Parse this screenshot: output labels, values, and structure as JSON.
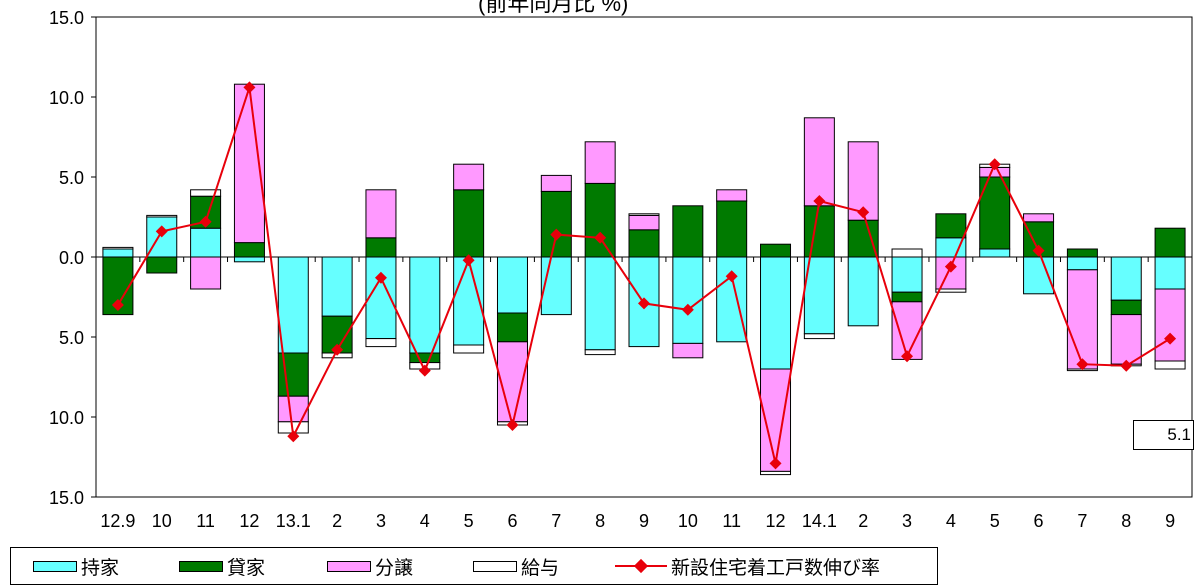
{
  "chart_data": {
    "type": "bar",
    "stacked": true,
    "title": "(前年同月比 %)",
    "xlabel": "",
    "ylabel": "",
    "ylim": [
      -15,
      15
    ],
    "yticks": [
      -15,
      -10,
      -5,
      0,
      5,
      10,
      15
    ],
    "ytick_labels": [
      "15.0",
      "10.0",
      "5.0",
      "0.0",
      "5.0",
      "10.0",
      "15.0"
    ],
    "grid": false,
    "legend_position": "bottom",
    "categories": [
      "12.9",
      "10",
      "11",
      "12",
      "13.1",
      "2",
      "3",
      "4",
      "5",
      "6",
      "7",
      "8",
      "9",
      "10",
      "11",
      "12",
      "14.1",
      "2",
      "3",
      "4",
      "5",
      "6",
      "7",
      "8",
      "9"
    ],
    "series": [
      {
        "name": "持家",
        "color": "#66ffff",
        "values": [
          0.5,
          2.5,
          1.8,
          -0.3,
          -6.0,
          -3.7,
          -5.1,
          -6.0,
          -5.5,
          -3.5,
          -3.6,
          -5.8,
          -5.6,
          -5.4,
          -5.3,
          -7.0,
          -4.8,
          -4.3,
          -2.2,
          1.2,
          0.5,
          -2.3,
          -0.8,
          -2.7,
          -2.0
        ]
      },
      {
        "name": "貸家",
        "color": "#007a00",
        "values": [
          -3.6,
          -1.0,
          2.0,
          0.9,
          -2.7,
          -2.3,
          1.2,
          -0.6,
          4.2,
          -1.8,
          4.1,
          4.6,
          1.7,
          3.2,
          3.5,
          0.8,
          3.2,
          2.3,
          -0.6,
          1.5,
          4.5,
          2.2,
          0.5,
          -0.9,
          1.8
        ]
      },
      {
        "name": "分譲",
        "color": "#ff99ff",
        "values": [
          0.0,
          0.0,
          -2.0,
          9.9,
          -1.6,
          0.0,
          3.0,
          0.0,
          1.6,
          -5.0,
          1.0,
          2.6,
          0.9,
          -0.9,
          0.7,
          -6.4,
          5.5,
          4.9,
          -3.6,
          -2.0,
          0.6,
          0.5,
          -6.2,
          -3.1,
          -4.5
        ]
      },
      {
        "name": "給与",
        "color": "#ffffff",
        "values": [
          0.1,
          0.1,
          0.4,
          0.0,
          -0.7,
          -0.3,
          -0.5,
          -0.4,
          -0.5,
          -0.2,
          0.0,
          -0.3,
          0.1,
          0.0,
          0.0,
          -0.2,
          -0.3,
          0.0,
          0.5,
          -0.2,
          0.2,
          0.0,
          -0.1,
          -0.1,
          -0.5
        ]
      }
    ],
    "line": {
      "name": "新設住宅着工戸数伸び率",
      "color": "#e8000b",
      "values": [
        -3.0,
        1.6,
        2.2,
        10.6,
        -11.2,
        -5.8,
        -1.3,
        -7.1,
        -0.2,
        -10.5,
        1.4,
        1.2,
        -2.9,
        -3.3,
        -1.2,
        -12.9,
        3.5,
        2.8,
        -6.2,
        -0.6,
        5.8,
        0.4,
        -6.7,
        -6.8,
        -5.1
      ]
    },
    "annotation": {
      "label": "5.1"
    }
  }
}
